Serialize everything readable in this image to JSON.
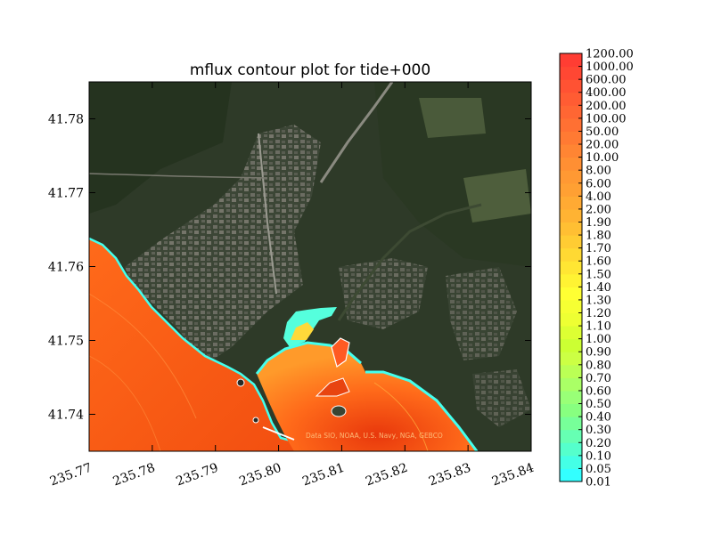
{
  "chart_data": {
    "type": "heatmap",
    "title": "mflux contour plot for tide+000",
    "xlabel": "",
    "ylabel": "",
    "xlim": [
      235.77,
      235.84
    ],
    "ylim": [
      41.735,
      41.785
    ],
    "x_ticks": [
      "235.77",
      "235.78",
      "235.79",
      "235.80",
      "235.81",
      "235.82",
      "235.83",
      "235.84"
    ],
    "y_ticks": [
      "41.74",
      "41.75",
      "41.76",
      "41.77",
      "41.78"
    ],
    "grid": false,
    "basemap_attribution": "Data SIO, NOAA, U.S. Navy, NGA, GEBCO",
    "colorbar": {
      "levels": [
        "0.01",
        "0.05",
        "0.10",
        "0.20",
        "0.30",
        "0.40",
        "0.50",
        "0.60",
        "0.70",
        "0.80",
        "0.90",
        "1.00",
        "1.10",
        "1.20",
        "1.30",
        "1.40",
        "1.50",
        "1.60",
        "1.70",
        "1.80",
        "1.90",
        "2.00",
        "4.00",
        "6.00",
        "8.00",
        "10.00",
        "20.00",
        "50.00",
        "100.00",
        "200.00",
        "400.00",
        "600.00",
        "1000.00",
        "1200.00"
      ],
      "colors": [
        "#33ffff",
        "#44ffe6",
        "#55ffcc",
        "#66ffb3",
        "#77ff99",
        "#88ff80",
        "#99ff77",
        "#aaff66",
        "#bbff55",
        "#ccff44",
        "#ccff33",
        "#ddff33",
        "#eeff33",
        "#f6ff33",
        "#ffff33",
        "#fff333",
        "#ffe633",
        "#ffd933",
        "#ffcc33",
        "#ffbf33",
        "#ffb333",
        "#ffaa33",
        "#ffa033",
        "#ff9933",
        "#ff8f33",
        "#ff8533",
        "#ff7a33",
        "#ff7033",
        "#ff6633",
        "#ff5c33",
        "#ff5233",
        "#ff4733",
        "#ff3d33"
      ]
    }
  }
}
